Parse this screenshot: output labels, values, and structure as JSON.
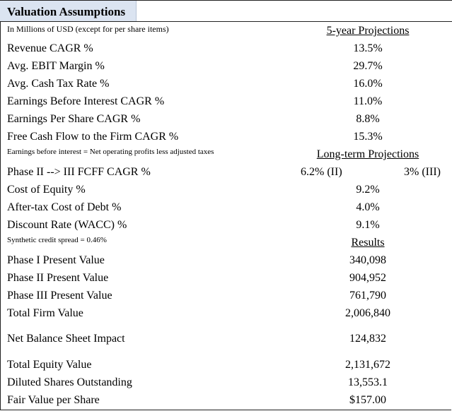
{
  "title": "Valuation Assumptions",
  "subtitle": "In Millions of USD (except for per share items)",
  "projections_header": "5-year Projections",
  "projections": [
    {
      "label": "Revenue CAGR %",
      "value": "13.5%"
    },
    {
      "label": "Avg. EBIT Margin %",
      "value": "29.7%"
    },
    {
      "label": "Avg. Cash Tax Rate %",
      "value": "16.0%"
    },
    {
      "label": "Earnings Before Interest CAGR %",
      "value": "11.0%"
    },
    {
      "label": "Earnings Per Share CAGR %",
      "value": "8.8%"
    },
    {
      "label": "Free Cash Flow to the Firm CAGR %",
      "value": "15.3%"
    }
  ],
  "note_earnings": "Earnings before interest = Net operating profits less adjusted taxes",
  "longterm_header": "Long-term Projections",
  "phase_fcff": {
    "label": "Phase II --> III FCFF CAGR %",
    "phase2": "6.2% (II)",
    "phase3": "3% (III)"
  },
  "longterm": [
    {
      "label": "Cost of Equity %",
      "value": "9.2%"
    },
    {
      "label": "After-tax Cost of Debt %",
      "value": "4.0%"
    },
    {
      "label": "Discount Rate (WACC) %",
      "value": "9.1%"
    }
  ],
  "note_spread": "Synthetic credit spread = 0.46%",
  "results_header": "Results",
  "results": [
    {
      "label": "Phase I Present Value",
      "value": "340,098"
    },
    {
      "label": "Phase II Present Value",
      "value": "904,952"
    },
    {
      "label": "Phase III Present Value",
      "value": "761,790"
    },
    {
      "label": "Total Firm Value",
      "value": "2,006,840"
    }
  ],
  "balance": {
    "label": "Net Balance Sheet Impact",
    "value": "124,832"
  },
  "equity": [
    {
      "label": "Total Equity Value",
      "value": "2,131,672"
    },
    {
      "label": "Diluted Shares Outstanding",
      "value": "13,553.1"
    },
    {
      "label": "Fair Value per Share",
      "value": "$157.00"
    }
  ]
}
